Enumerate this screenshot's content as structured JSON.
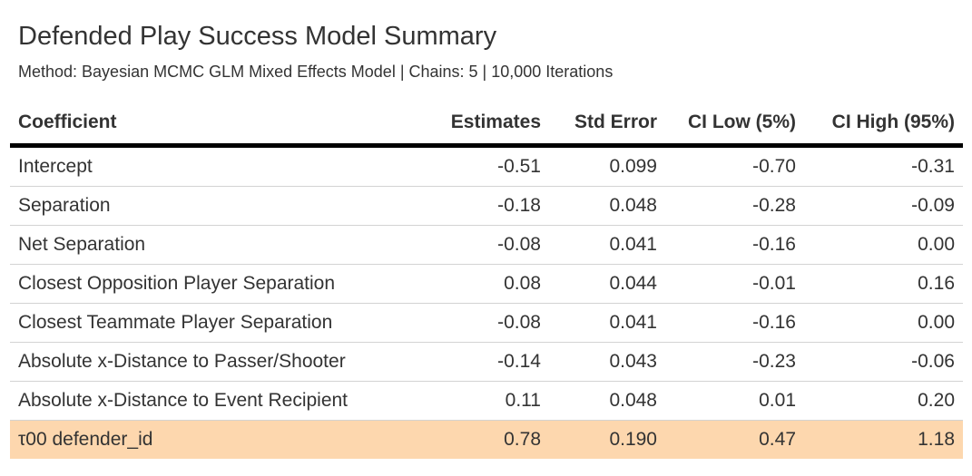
{
  "title": "Defended Play Success Model Summary",
  "subtitle": "Method: Bayesian MCMC GLM Mixed Effects Model | Chains: 5 | 10,000 Iterations",
  "columns": [
    "Coefficient",
    "Estimates",
    "Std Error",
    "CI Low (5%)",
    "CI High (95%)"
  ],
  "rows": [
    {
      "coefficient": "Intercept",
      "estimate": "-0.51",
      "std_error": "0.099",
      "ci_low": "-0.70",
      "ci_high": "-0.31"
    },
    {
      "coefficient": "Separation",
      "estimate": "-0.18",
      "std_error": "0.048",
      "ci_low": "-0.28",
      "ci_high": "-0.09"
    },
    {
      "coefficient": "Net Separation",
      "estimate": "-0.08",
      "std_error": "0.041",
      "ci_low": "-0.16",
      "ci_high": "0.00"
    },
    {
      "coefficient": "Closest Opposition Player Separation",
      "estimate": "0.08",
      "std_error": "0.044",
      "ci_low": "-0.01",
      "ci_high": "0.16"
    },
    {
      "coefficient": "Closest Teammate Player Separation",
      "estimate": "-0.08",
      "std_error": "0.041",
      "ci_low": "-0.16",
      "ci_high": "0.00"
    },
    {
      "coefficient": "Absolute x-Distance to Passer/Shooter",
      "estimate": "-0.14",
      "std_error": "0.043",
      "ci_low": "-0.23",
      "ci_high": "-0.06"
    },
    {
      "coefficient": "Absolute x-Distance to Event Recipient",
      "estimate": "0.11",
      "std_error": "0.048",
      "ci_low": "0.01",
      "ci_high": "0.20"
    },
    {
      "coefficient": "τ00 defender_id",
      "estimate": "0.78",
      "std_error": "0.190",
      "ci_low": "0.47",
      "ci_high": "1.18"
    }
  ],
  "colors": {
    "highlight_row": "#fdd7ae",
    "header_rule": "#000000",
    "row_rule": "#d3d3d3"
  }
}
